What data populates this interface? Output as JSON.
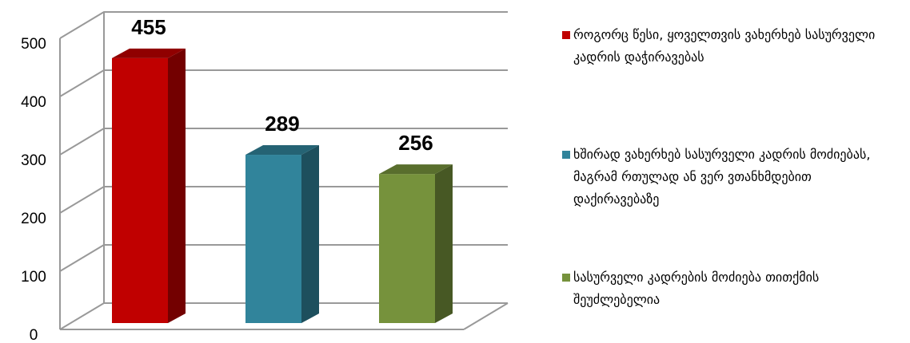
{
  "chart_data": {
    "type": "bar3d",
    "series": [
      {
        "name": "როგორც წესი, ყოველთვის ვახერხებ სასურველი კადრის დაჭირავებას",
        "color": "#c00000",
        "values": [
          455
        ]
      },
      {
        "name": "ხშირად ვახერხებ სასურველი კადრის მოძიებას, მაგრამ რთულად ან ვერ ვთანხმდებით დაქირავებაზე",
        "color": "#31849b",
        "values": [
          289
        ]
      },
      {
        "name": "სასურველი კადრების მოძიება თითქმის შეუძლებელია",
        "color": "#76923c",
        "values": [
          256
        ]
      }
    ],
    "ylim": [
      0,
      500
    ],
    "yticks": [
      0,
      100,
      200,
      300,
      400,
      500
    ],
    "grid": true
  }
}
